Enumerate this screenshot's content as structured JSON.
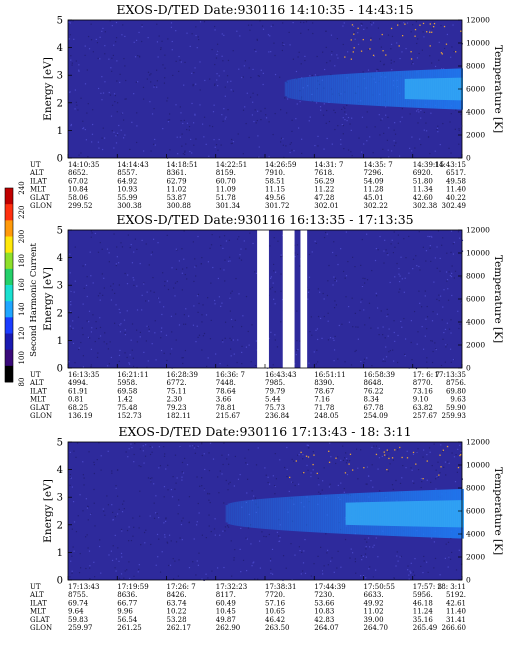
{
  "colors": {
    "background": "#ffffff",
    "plot_fill": "#2e2a9c",
    "bright_band": "#1f7bf2",
    "bright_core": "#33a9f5",
    "speckle": "#e8a23a",
    "colorbar": [
      "#000000",
      "#3a0a7a",
      "#1a1ab0",
      "#1a3cff",
      "#1fa6ff",
      "#1ae0d0",
      "#24d06a",
      "#8ee02a",
      "#ffe80a",
      "#ff9a0a",
      "#ff3010",
      "#c00000"
    ]
  },
  "colorbar": {
    "label": "Second Harmonic Current",
    "ticks": [
      "80",
      "100",
      "120",
      "140",
      "160",
      "180",
      "200",
      "220",
      "240"
    ]
  },
  "chart_data": [
    {
      "type": "heatmap",
      "title": "EXOS-D/TED   Date:930116   14:10:35 - 14:43:15",
      "ylabel": "Energy [eV]",
      "y2label": "Temperature [K]",
      "ylim": [
        0,
        5
      ],
      "y2lim": [
        0,
        12000
      ],
      "yticks": [
        "0",
        "1",
        "2",
        "3",
        "4",
        "5"
      ],
      "y2ticks": [
        "0",
        "2000",
        "4000",
        "6000",
        "8000",
        "10000",
        "12000"
      ],
      "band": {
        "start_fraction": 0.55,
        "center": 2.5,
        "half_width": 0.75,
        "core_start_fraction": 0.85
      },
      "gaps": [],
      "orbit_labels": [
        "UT",
        "ALT",
        "ILAT",
        "MLT",
        "GLAT",
        "GLON"
      ],
      "columns": [
        [
          "14:10:35",
          "8652.",
          "67.02",
          "10.84",
          "58.06",
          "299.52"
        ],
        [
          "14:14:43",
          "8557.",
          "64.92",
          "10.93",
          "55.99",
          "300.38"
        ],
        [
          "14:18:51",
          "8361.",
          "62.79",
          "11.02",
          "53.87",
          "300.88"
        ],
        [
          "14:22:51",
          "8159.",
          "60.70",
          "11.09",
          "51.78",
          "301.34"
        ],
        [
          "14:26:59",
          "7910.",
          "58.51",
          "11.15",
          "49.56",
          "301.72"
        ],
        [
          "14:31: 7",
          "7618.",
          "56.29",
          "11.22",
          "47.28",
          "302.01"
        ],
        [
          "14:35: 7",
          "7296.",
          "54.09",
          "11.28",
          "45.01",
          "302.22"
        ],
        [
          "14:39:15",
          "6920.",
          "51.80",
          "11.34",
          "42.60",
          "302.38"
        ],
        [
          "14:43:15",
          "6517.",
          "49.58",
          "11.40",
          "40.22",
          "302.49"
        ]
      ]
    },
    {
      "type": "heatmap",
      "title": "EXOS-D/TED   Date:930116   16:13:35 - 17:13:35",
      "ylabel": "Energy [eV]",
      "y2label": "Temperature [K]",
      "ylim": [
        0,
        5
      ],
      "y2lim": [
        0,
        12000
      ],
      "yticks": [
        "0",
        "1",
        "2",
        "3",
        "4",
        "5"
      ],
      "y2ticks": [
        "0",
        "2000",
        "4000",
        "6000",
        "8000",
        "10000",
        "12000"
      ],
      "band": null,
      "gaps": [
        [
          0.48,
          0.51
        ],
        [
          0.545,
          0.575
        ],
        [
          0.59,
          0.607
        ]
      ],
      "orbit_labels": [
        "UT",
        "ALT",
        "ILAT",
        "MLT",
        "GLAT",
        "GLON"
      ],
      "columns": [
        [
          "16:13:35",
          "4994.",
          "61.91",
          "0.81",
          "68.25",
          "136.19"
        ],
        [
          "16:21:11",
          "5958.",
          "69.58",
          "1.42",
          "75.48",
          "152.73"
        ],
        [
          "16:28:39",
          "6772.",
          "75.11",
          "2.30",
          "79.23",
          "182.11"
        ],
        [
          "16:36: 7",
          "7448.",
          "78.64",
          "3.66",
          "78.81",
          "215.67"
        ],
        [
          "16:43:43",
          "7985.",
          "79.79",
          "5.44",
          "75.73",
          "236.84"
        ],
        [
          "16:51:11",
          "8390.",
          "78.67",
          "7.16",
          "71.78",
          "248.05"
        ],
        [
          "16:58:39",
          "8648.",
          "76.22",
          "8.34",
          "67.78",
          "254.09"
        ],
        [
          "17: 6: 7",
          "8770.",
          "73.16",
          "9.10",
          "63.82",
          "257.67"
        ],
        [
          "17:13:35",
          "8756.",
          "69.80",
          "9.63",
          "59.90",
          "259.93"
        ]
      ]
    },
    {
      "type": "heatmap",
      "title": "EXOS-D/TED   Date:930116   17:13:43 - 18: 3:11",
      "ylabel": "Energy [eV]",
      "y2label": "Temperature [K]",
      "ylim": [
        0,
        5
      ],
      "y2lim": [
        0,
        12000
      ],
      "yticks": [
        "0",
        "1",
        "2",
        "3",
        "4",
        "5"
      ],
      "y2ticks": [
        "0",
        "2000",
        "4000",
        "6000",
        "8000",
        "10000",
        "12000"
      ],
      "band": {
        "start_fraction": 0.4,
        "center": 2.4,
        "half_width": 0.9,
        "core_start_fraction": 0.7
      },
      "gaps": [],
      "orbit_labels": [
        "UT",
        "ALT",
        "ILAT",
        "MLT",
        "GLAT",
        "GLON"
      ],
      "columns": [
        [
          "17:13:43",
          "8755.",
          "69.74",
          "9.64",
          "59.83",
          "259.97"
        ],
        [
          "17:19:59",
          "8636.",
          "66.77",
          "9.96",
          "56.54",
          "261.25"
        ],
        [
          "17:26: 7",
          "8426.",
          "63.74",
          "10.22",
          "53.28",
          "262.17"
        ],
        [
          "17:32:23",
          "8117.",
          "60.49",
          "10.45",
          "49.87",
          "262.90"
        ],
        [
          "17:38:31",
          "7720.",
          "57.16",
          "10.65",
          "46.42",
          "263.50"
        ],
        [
          "17:44:39",
          "7230.",
          "53.66",
          "10.83",
          "42.83",
          "264.07"
        ],
        [
          "17:50:55",
          "6633.",
          "49.92",
          "11.02",
          "39.00",
          "264.70"
        ],
        [
          "17:57: 3",
          "5956.",
          "46.18",
          "11.24",
          "35.16",
          "265.49"
        ],
        [
          "18: 3:11",
          "5192.",
          "42.61",
          "11.40",
          "31.41",
          "266.60"
        ]
      ]
    }
  ]
}
